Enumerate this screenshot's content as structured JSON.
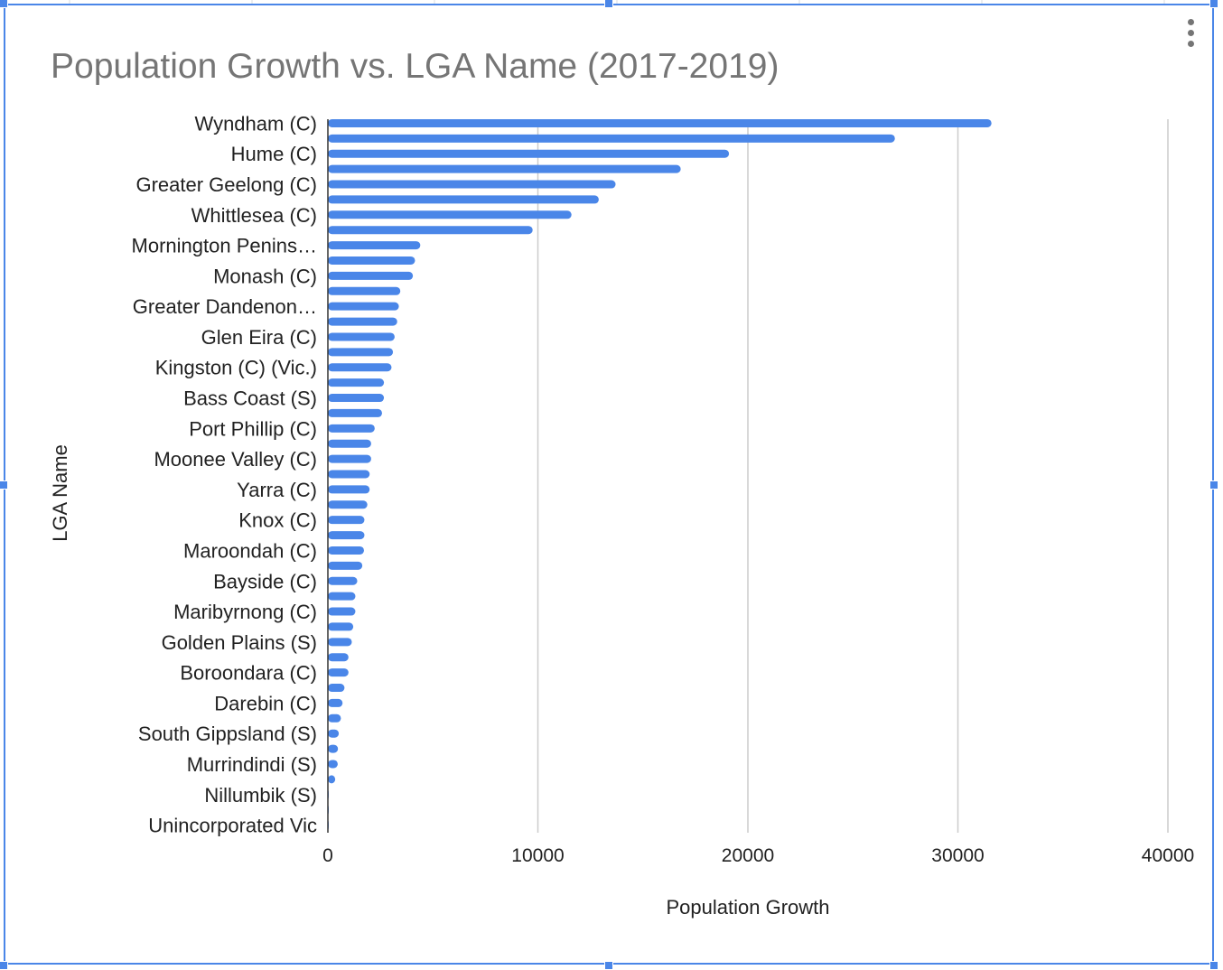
{
  "chart_data": {
    "type": "bar",
    "orientation": "horizontal",
    "title": "Population Growth vs. LGA Name (2017-2019)",
    "xlabel": "Population Growth",
    "ylabel": "LGA Name",
    "xlim": [
      0,
      40000
    ],
    "xticks": [
      "0",
      "10000",
      "20000",
      "30000",
      "40000"
    ],
    "grid": true,
    "bar_color": "#4a86e8",
    "categories": [
      "Wyndham (C)",
      "",
      "Hume (C)",
      "",
      "Greater Geelong (C)",
      "",
      "Whittlesea (C)",
      "",
      "Mornington Penins…",
      "",
      "Monash (C)",
      "",
      "Greater Dandenon…",
      "",
      "Glen Eira (C)",
      "",
      "Kingston (C) (Vic.)",
      "",
      "Bass Coast (S)",
      "",
      "Port Phillip (C)",
      "",
      "Moonee Valley (C)",
      "",
      "Yarra (C)",
      "",
      "Knox (C)",
      "",
      "Maroondah (C)",
      "",
      "Bayside (C)",
      "",
      "Maribyrnong (C)",
      "",
      "Golden Plains (S)",
      "",
      "Boroondara (C)",
      "",
      "Darebin (C)",
      "",
      "South Gippsland (S)",
      "",
      "Murrindindi (S)",
      "",
      "Nillumbik (S)",
      "",
      "Unincorporated Vic"
    ],
    "values": [
      31600,
      27000,
      19100,
      16800,
      13700,
      12900,
      11600,
      9750,
      4400,
      4150,
      4050,
      3450,
      3380,
      3300,
      3180,
      3100,
      3030,
      2670,
      2670,
      2580,
      2230,
      2060,
      2060,
      1990,
      1990,
      1880,
      1740,
      1740,
      1720,
      1640,
      1400,
      1310,
      1310,
      1210,
      1140,
      980,
      980,
      790,
      700,
      620,
      520,
      480,
      470,
      350,
      30,
      20,
      10
    ]
  },
  "menu": {
    "icon": "more-vert-icon"
  }
}
